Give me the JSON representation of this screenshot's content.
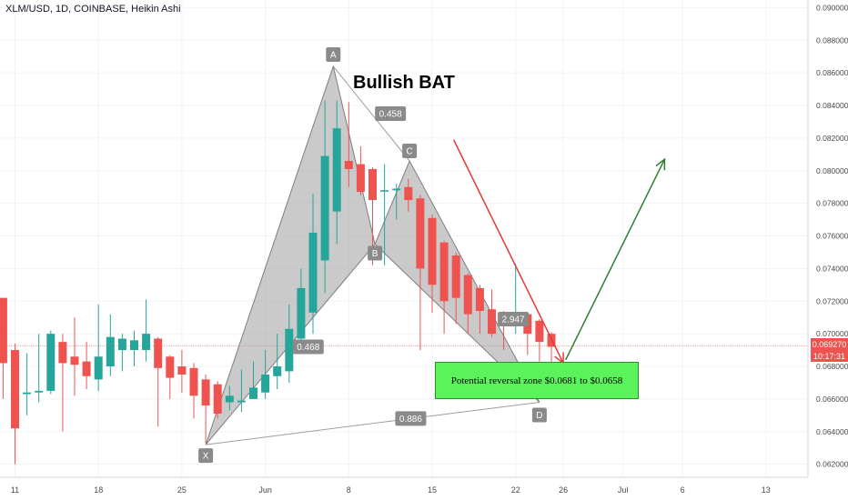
{
  "header": {
    "title": "XLM/USD, 1D, COINBASE, Heikin Ashi"
  },
  "pattern_title": "Bullish BAT",
  "zone_label": "Potential reversal zone $0.0681 to $0.0658",
  "price_tag": {
    "price": "0.069270",
    "countdown": "10:17:31",
    "color": "#ef5350"
  },
  "colors": {
    "up": "#26a69a",
    "down": "#ef5350",
    "pattern_fill": "#9e9e9e",
    "arrow_down": "#e53935",
    "arrow_up": "#2e7d32"
  },
  "chart_data": {
    "type": "candlestick",
    "title": "XLM/USD, 1D, COINBASE, Heikin Ashi",
    "y_axis": {
      "range": [
        0.0612,
        0.0903
      ],
      "ticks": [
        "0.062000",
        "0.064000",
        "0.066000",
        "0.068000",
        "0.070000",
        "0.072000",
        "0.074000",
        "0.076000",
        "0.078000",
        "0.080000",
        "0.082000",
        "0.084000",
        "0.086000",
        "0.088000",
        "0.090000"
      ],
      "tick_values": [
        0.062,
        0.064,
        0.066,
        0.068,
        0.07,
        0.072,
        0.074,
        0.076,
        0.078,
        0.08,
        0.082,
        0.084,
        0.086,
        0.088,
        0.09
      ]
    },
    "x_axis": {
      "ticks": [
        {
          "label": "11",
          "day": 0
        },
        {
          "label": "18",
          "day": 7
        },
        {
          "label": "25",
          "day": 14
        },
        {
          "label": "Jun",
          "day": 21
        },
        {
          "label": "8",
          "day": 28
        },
        {
          "label": "15",
          "day": 35
        },
        {
          "label": "22",
          "day": 42
        },
        {
          "label": "26",
          "day": 46
        },
        {
          "label": "Jul",
          "day": 51
        },
        {
          "label": "6",
          "day": 56
        },
        {
          "label": "13",
          "day": 63
        }
      ]
    },
    "candles": [
      {
        "d": -1,
        "o": 0.0722,
        "c": 0.0682,
        "h": 0.0722,
        "l": 0.066
      },
      {
        "d": 0,
        "o": 0.069,
        "c": 0.0642,
        "h": 0.0694,
        "l": 0.062
      },
      {
        "d": 1,
        "o": 0.0663,
        "c": 0.0664,
        "h": 0.0688,
        "l": 0.065
      },
      {
        "d": 2,
        "o": 0.0664,
        "c": 0.0665,
        "h": 0.07,
        "l": 0.0658
      },
      {
        "d": 3,
        "o": 0.0665,
        "c": 0.07,
        "h": 0.0702,
        "l": 0.0663
      },
      {
        "d": 4,
        "o": 0.0695,
        "c": 0.0682,
        "h": 0.07,
        "l": 0.064
      },
      {
        "d": 5,
        "o": 0.0686,
        "c": 0.0681,
        "h": 0.071,
        "l": 0.0662
      },
      {
        "d": 6,
        "o": 0.0683,
        "c": 0.0674,
        "h": 0.0695,
        "l": 0.0666
      },
      {
        "d": 7,
        "o": 0.0672,
        "c": 0.0686,
        "h": 0.0718,
        "l": 0.0665
      },
      {
        "d": 8,
        "o": 0.068,
        "c": 0.0698,
        "h": 0.0712,
        "l": 0.0674
      },
      {
        "d": 9,
        "o": 0.069,
        "c": 0.0697,
        "h": 0.07,
        "l": 0.0677
      },
      {
        "d": 10,
        "o": 0.069,
        "c": 0.0696,
        "h": 0.0702,
        "l": 0.068
      },
      {
        "d": 11,
        "o": 0.069,
        "c": 0.07,
        "h": 0.0721,
        "l": 0.0683
      },
      {
        "d": 12,
        "o": 0.0697,
        "c": 0.0679,
        "h": 0.0698,
        "l": 0.0643
      },
      {
        "d": 13,
        "o": 0.0686,
        "c": 0.0673,
        "h": 0.0687,
        "l": 0.066
      },
      {
        "d": 14,
        "o": 0.068,
        "c": 0.0675,
        "h": 0.069,
        "l": 0.0664
      },
      {
        "d": 15,
        "o": 0.0679,
        "c": 0.0662,
        "h": 0.0682,
        "l": 0.0648
      },
      {
        "d": 16,
        "o": 0.0672,
        "c": 0.0656,
        "h": 0.0675,
        "l": 0.0633
      },
      {
        "d": 17,
        "o": 0.0669,
        "c": 0.0651,
        "h": 0.0671,
        "l": 0.0648
      },
      {
        "d": 18,
        "o": 0.0658,
        "c": 0.0662,
        "h": 0.0668,
        "l": 0.0653
      },
      {
        "d": 19,
        "o": 0.0658,
        "c": 0.0659,
        "h": 0.0678,
        "l": 0.0652
      },
      {
        "d": 20,
        "o": 0.066,
        "c": 0.0667,
        "h": 0.0683,
        "l": 0.066
      },
      {
        "d": 21,
        "o": 0.0664,
        "c": 0.0675,
        "h": 0.069,
        "l": 0.066
      },
      {
        "d": 22,
        "o": 0.0674,
        "c": 0.068,
        "h": 0.07,
        "l": 0.0666
      },
      {
        "d": 23,
        "o": 0.0677,
        "c": 0.0703,
        "h": 0.0718,
        "l": 0.067
      },
      {
        "d": 24,
        "o": 0.0697,
        "c": 0.0728,
        "h": 0.074,
        "l": 0.0688
      },
      {
        "d": 25,
        "o": 0.0713,
        "c": 0.0762,
        "h": 0.0786,
        "l": 0.07
      },
      {
        "d": 26,
        "o": 0.0745,
        "c": 0.0809,
        "h": 0.0843,
        "l": 0.0725
      },
      {
        "d": 27,
        "o": 0.0775,
        "c": 0.0826,
        "h": 0.0843,
        "l": 0.0755
      },
      {
        "d": 28,
        "o": 0.0806,
        "c": 0.0801,
        "h": 0.0842,
        "l": 0.079
      },
      {
        "d": 29,
        "o": 0.0804,
        "c": 0.0787,
        "h": 0.0815,
        "l": 0.0785
      },
      {
        "d": 30,
        "o": 0.0801,
        "c": 0.0782,
        "h": 0.0802,
        "l": 0.0742
      },
      {
        "d": 31,
        "o": 0.0788,
        "c": 0.0788,
        "h": 0.0804,
        "l": 0.0742
      },
      {
        "d": 32,
        "o": 0.0788,
        "c": 0.0789,
        "h": 0.0792,
        "l": 0.077
      },
      {
        "d": 33,
        "o": 0.079,
        "c": 0.0782,
        "h": 0.0795,
        "l": 0.0775
      },
      {
        "d": 34,
        "o": 0.0783,
        "c": 0.074,
        "h": 0.0785,
        "l": 0.069
      },
      {
        "d": 35,
        "o": 0.0771,
        "c": 0.073,
        "h": 0.0773,
        "l": 0.0713
      },
      {
        "d": 36,
        "o": 0.0756,
        "c": 0.072,
        "h": 0.0757,
        "l": 0.07
      },
      {
        "d": 37,
        "o": 0.0748,
        "c": 0.0722,
        "h": 0.075,
        "l": 0.0706
      },
      {
        "d": 38,
        "o": 0.0736,
        "c": 0.0712,
        "h": 0.0737,
        "l": 0.07
      },
      {
        "d": 39,
        "o": 0.0728,
        "c": 0.0714,
        "h": 0.073,
        "l": 0.07
      },
      {
        "d": 40,
        "o": 0.0715,
        "c": 0.07,
        "h": 0.0727,
        "l": 0.0698
      },
      {
        "d": 41,
        "o": 0.0713,
        "c": 0.0705,
        "h": 0.0714,
        "l": 0.069
      },
      {
        "d": 42,
        "o": 0.0709,
        "c": 0.0713,
        "h": 0.0743,
        "l": 0.07
      },
      {
        "d": 43,
        "o": 0.0712,
        "c": 0.07,
        "h": 0.0713,
        "l": 0.0687
      },
      {
        "d": 44,
        "o": 0.0708,
        "c": 0.0695,
        "h": 0.0709,
        "l": 0.0683
      },
      {
        "d": 45,
        "o": 0.07,
        "c": 0.0692,
        "h": 0.0701,
        "l": 0.0681
      }
    ],
    "pattern": {
      "name": "Bullish BAT",
      "points": [
        {
          "label": "X",
          "d": 16,
          "price": 0.0632
        },
        {
          "label": "A",
          "d": 26.7,
          "price": 0.0864
        },
        {
          "label": "B",
          "d": 30.2,
          "price": 0.0755
        },
        {
          "label": "C",
          "d": 33.1,
          "price": 0.0806
        },
        {
          "label": "D",
          "d": 44,
          "price": 0.0658
        }
      ],
      "ratios": [
        {
          "label": "0.458",
          "d": 31.5,
          "price": 0.0835
        },
        {
          "label": "0.468",
          "d": 24.6,
          "price": 0.0692
        },
        {
          "label": "2.947",
          "d": 41.8,
          "price": 0.0709
        },
        {
          "label": "0.886",
          "d": 33.2,
          "price": 0.0648
        }
      ]
    },
    "arrows": [
      {
        "from": {
          "d": 36.8,
          "price": 0.0819
        },
        "to": {
          "d": 46,
          "price": 0.0682
        },
        "color": "#e53935"
      },
      {
        "from": {
          "d": 46.2,
          "price": 0.0684
        },
        "to": {
          "d": 54.5,
          "price": 0.0807
        },
        "color": "#2e7d32"
      }
    ],
    "reversal_zone": {
      "label": "Potential reversal zone $0.0681 to $0.0658",
      "high": 0.0681,
      "low": 0.0658
    },
    "current_price": 0.06927
  }
}
